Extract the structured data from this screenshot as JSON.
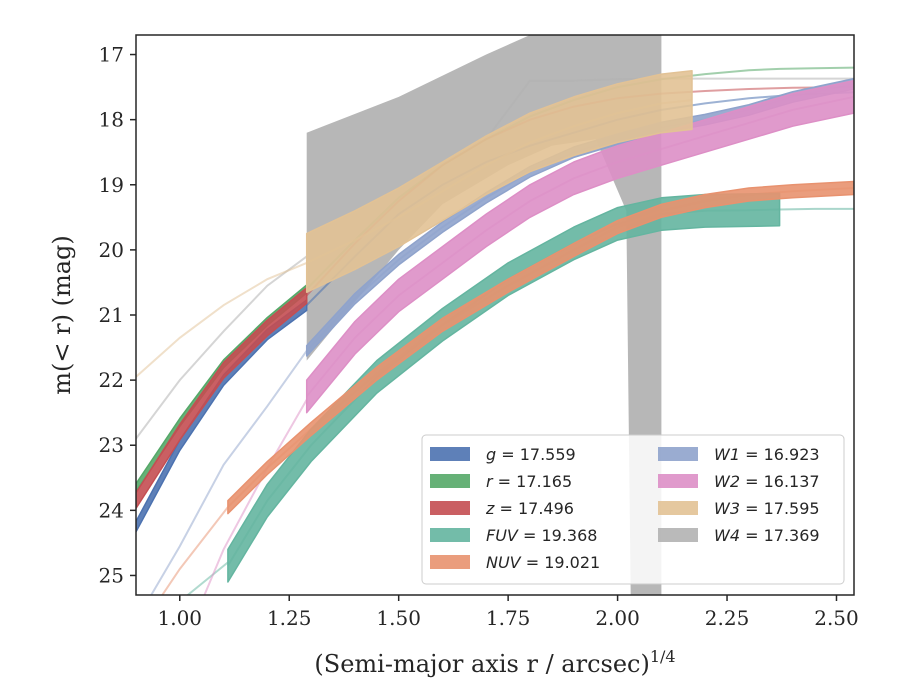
{
  "chart_data": {
    "type": "line",
    "title": "",
    "xlabel": "(Semi-major axis r / arcsec)",
    "xlabel_superscript": "1/4",
    "ylabel": "m(< r) (mag)",
    "xlim": [
      0.9,
      2.54
    ],
    "ylim": [
      25.3,
      16.7
    ],
    "y_inverted": true,
    "grid": false,
    "legend_position": "lower-right",
    "xticks": [
      "1.00",
      "1.25",
      "1.50",
      "1.75",
      "2.00",
      "2.25",
      "2.50"
    ],
    "yticks": [
      "17",
      "18",
      "19",
      "20",
      "21",
      "22",
      "23",
      "24",
      "25"
    ],
    "series": [
      {
        "name": "g = 17.559",
        "label_var": "g",
        "label_val": "17.559",
        "color": "#4c72b0",
        "x": [
          0.9,
          1.0,
          1.1,
          1.2,
          1.29,
          1.4,
          1.5,
          1.6,
          1.7,
          1.8,
          1.9,
          2.0,
          2.1,
          2.2,
          2.3,
          2.4,
          2.54
        ],
        "y": [
          24.25,
          23.0,
          22.0,
          21.3,
          20.85,
          20.1,
          19.45,
          19.0,
          18.65,
          18.4,
          18.2,
          18.0,
          17.85,
          17.75,
          17.67,
          17.62,
          17.58
        ],
        "band": 0.08,
        "solid_range": [
          0.9,
          1.29
        ],
        "faint_range": [
          1.29,
          2.54
        ]
      },
      {
        "name": "r = 17.165",
        "label_var": "r",
        "label_val": "17.165",
        "color": "#55a868",
        "x": [
          0.9,
          1.0,
          1.1,
          1.2,
          1.29,
          1.4,
          1.5,
          1.6,
          1.7,
          1.8,
          1.9,
          2.0,
          2.1,
          2.2,
          2.3,
          2.37,
          2.45,
          2.54
        ],
        "y": [
          23.65,
          22.65,
          21.75,
          21.1,
          20.6,
          19.85,
          19.2,
          18.7,
          18.3,
          17.95,
          17.7,
          17.5,
          17.38,
          17.3,
          17.24,
          17.22,
          17.21,
          17.2
        ],
        "band": 0.06,
        "solid_range": [
          0.9,
          1.29
        ],
        "faint_range": [
          1.29,
          2.54
        ]
      },
      {
        "name": "z = 17.496",
        "label_var": "z",
        "label_val": "17.496",
        "color": "#c44e52",
        "x": [
          0.9,
          1.0,
          1.1,
          1.2,
          1.29,
          1.4,
          1.5,
          1.6,
          1.7,
          1.8,
          1.9,
          2.0,
          2.1,
          2.2,
          2.3,
          2.4,
          2.54
        ],
        "y": [
          23.85,
          22.8,
          21.85,
          21.2,
          20.7,
          19.9,
          19.25,
          18.7,
          18.3,
          18.0,
          17.8,
          17.67,
          17.6,
          17.56,
          17.53,
          17.51,
          17.5
        ],
        "band": 0.12,
        "solid_range": [
          0.9,
          1.29
        ],
        "faint_range": [
          1.29,
          2.54
        ]
      },
      {
        "name": "FUV = 19.368",
        "label_var": "FUV",
        "label_val": "19.368",
        "color": "#64b5a0",
        "x": [
          1.11,
          1.2,
          1.3,
          1.45,
          1.6,
          1.75,
          1.9,
          2.0,
          2.1,
          2.2,
          2.3,
          2.37,
          2.45,
          2.54
        ],
        "y": [
          24.85,
          23.85,
          23.0,
          21.95,
          21.15,
          20.45,
          19.9,
          19.6,
          19.45,
          19.4,
          19.39,
          19.38,
          19.37,
          19.37
        ],
        "band": 0.25,
        "solid_range": [
          1.11,
          2.37
        ],
        "faint_range": [
          0.9,
          2.54
        ],
        "faint_x": [
          0.9,
          1.0,
          1.11
        ],
        "faint_y": [
          26.0,
          25.4,
          24.8
        ]
      },
      {
        "name": "NUV = 19.021",
        "label_var": "NUV",
        "label_val": "19.021",
        "color": "#e8926f",
        "x": [
          1.11,
          1.2,
          1.3,
          1.45,
          1.6,
          1.75,
          1.9,
          2.0,
          2.1,
          2.2,
          2.3,
          2.4,
          2.54
        ],
        "y": [
          23.95,
          23.35,
          22.75,
          21.9,
          21.15,
          20.55,
          20.0,
          19.65,
          19.4,
          19.25,
          19.15,
          19.1,
          19.05
        ],
        "band": 0.1,
        "solid_range": [
          1.11,
          2.54
        ],
        "faint_range": [
          0.9,
          2.54
        ],
        "faint_x": [
          0.9,
          1.0,
          1.11
        ],
        "faint_y": [
          25.9,
          24.9,
          23.95
        ]
      },
      {
        "name": "W1 = 16.923",
        "label_var": "W1",
        "label_val": "16.923",
        "color": "#8fa3cc",
        "x": [
          1.29,
          1.4,
          1.5,
          1.6,
          1.7,
          1.8,
          1.9,
          2.0,
          2.1,
          2.2,
          2.3,
          2.4,
          2.54
        ],
        "y": [
          21.55,
          20.75,
          20.15,
          19.65,
          19.2,
          18.8,
          18.5,
          18.3,
          18.12,
          18.0,
          17.85,
          17.65,
          17.45
        ],
        "band": 0.08,
        "solid_range": [
          1.29,
          2.54
        ],
        "faint_range": [
          0.9,
          2.54
        ],
        "faint_x": [
          0.9,
          1.0,
          1.1,
          1.2,
          1.29
        ],
        "faint_y": [
          25.7,
          24.55,
          23.3,
          22.4,
          21.55
        ]
      },
      {
        "name": "W2 = 16.137",
        "label_var": "W2",
        "label_val": "16.137",
        "color": "#dd8fc6",
        "x": [
          1.29,
          1.4,
          1.5,
          1.6,
          1.7,
          1.8,
          1.9,
          2.0,
          2.1,
          2.2,
          2.3,
          2.4,
          2.54
        ],
        "y": [
          22.25,
          21.35,
          20.7,
          20.2,
          19.7,
          19.25,
          18.9,
          18.65,
          18.45,
          18.25,
          18.05,
          17.85,
          17.65
        ],
        "band": 0.25,
        "solid_range": [
          1.29,
          2.54
        ],
        "faint_range": [
          0.9,
          2.54
        ],
        "faint_x": [
          1.05,
          1.1,
          1.2,
          1.29
        ],
        "faint_y": [
          25.4,
          24.6,
          23.35,
          22.3
        ]
      },
      {
        "name": "W3 = 17.595",
        "label_var": "W3",
        "label_val": "17.595",
        "color": "#e2c295",
        "x": [
          1.29,
          1.4,
          1.5,
          1.6,
          1.7,
          1.8,
          1.9,
          2.0,
          2.1,
          2.17
        ],
        "y": [
          20.2,
          19.85,
          19.5,
          19.1,
          18.7,
          18.35,
          18.1,
          17.9,
          17.75,
          17.7
        ],
        "band": 0.45,
        "solid_range": [
          1.29,
          2.17
        ],
        "faint_range": [
          0.9,
          2.54
        ],
        "faint_x": [
          0.9,
          1.0,
          1.1,
          1.2,
          1.29
        ],
        "faint_y": [
          21.95,
          21.35,
          20.85,
          20.45,
          20.2
        ]
      },
      {
        "name": "W4 = 17.369",
        "label_var": "W4",
        "label_val": "17.369",
        "color": "#b3b3b3",
        "solid_range": [
          1.29,
          2.1
        ],
        "faint_x": [
          0.9,
          1.0,
          1.1,
          1.2,
          1.29,
          1.4,
          1.5,
          1.6,
          1.7,
          1.8,
          1.9,
          2.0,
          2.1,
          2.2,
          2.3,
          2.4,
          2.54
        ],
        "faint_y": [
          22.9,
          22.0,
          21.25,
          20.55,
          20.1,
          19.55,
          19.1,
          18.7,
          18.3,
          17.4,
          17.4,
          17.38,
          17.37,
          17.37,
          17.37,
          17.37,
          17.37
        ],
        "upper": {
          "x": [
            1.29,
            1.5,
            1.7,
            1.8,
            2.1
          ],
          "y": [
            18.2,
            17.65,
            17.0,
            16.7,
            16.7
          ]
        },
        "lower": {
          "x": [
            1.29,
            1.4,
            1.5,
            1.6,
            1.75,
            1.85,
            1.95,
            2.02,
            2.03,
            2.1
          ],
          "y": [
            21.7,
            20.8,
            20.0,
            19.3,
            18.7,
            18.4,
            18.3,
            19.4,
            25.3,
            25.3
          ]
        }
      }
    ]
  }
}
